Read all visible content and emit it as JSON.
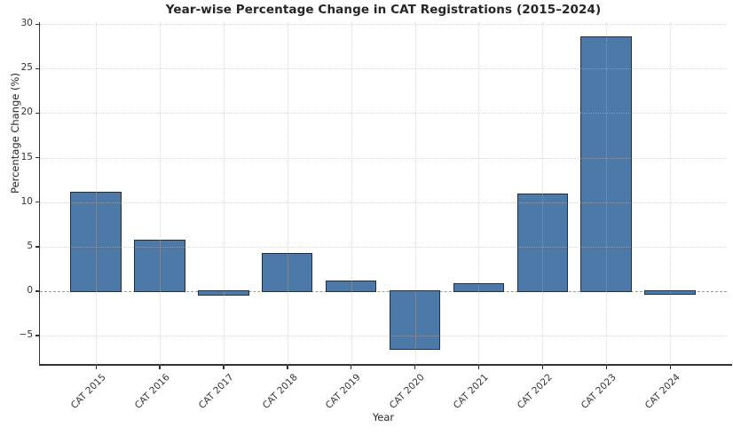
{
  "chart_data": {
    "type": "bar",
    "title": "Year-wise Percentage Change in CAT Registrations (2015–2024)",
    "xlabel": "Year",
    "ylabel": "Percentage Change (%)",
    "categories": [
      "CAT 2015",
      "CAT 2016",
      "CAT 2017",
      "CAT 2018",
      "CAT 2019",
      "CAT 2020",
      "CAT 2021",
      "CAT 2022",
      "CAT 2023",
      "CAT 2024"
    ],
    "values": [
      11.2,
      5.8,
      -0.5,
      4.3,
      1.2,
      -6.6,
      0.9,
      11.0,
      28.6,
      -0.4
    ],
    "yticks": [
      -5,
      0,
      5,
      10,
      15,
      20,
      25,
      30
    ],
    "ylim": [
      -8.3,
      30.2
    ],
    "grid": true,
    "legend": null,
    "zero_line_style": "dashed",
    "colors": {
      "bar_fill": "#4d79a8",
      "bar_edge": "#20303f",
      "axis": "#333333",
      "grid": "#c9c9c9",
      "zero_line": "#9b9b9b",
      "title_text": "#262626",
      "tick_text": "#333333"
    }
  }
}
